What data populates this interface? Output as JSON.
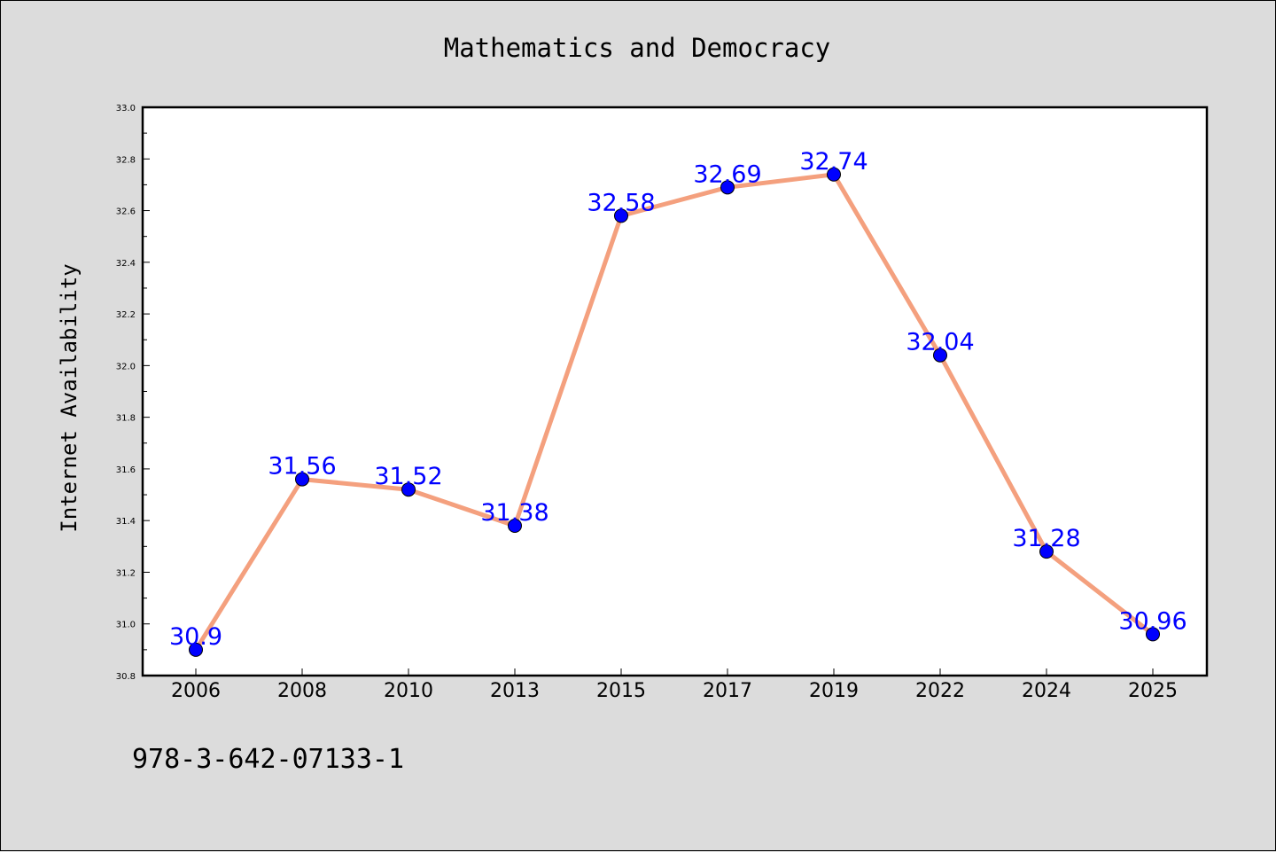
{
  "chart_data": {
    "type": "line",
    "title": "Mathematics and Democracy",
    "xlabel": "",
    "ylabel": "Internet Availability",
    "categories": [
      "2006",
      "2008",
      "2010",
      "2013",
      "2015",
      "2017",
      "2019",
      "2022",
      "2024",
      "2025"
    ],
    "values": [
      30.9,
      31.56,
      31.52,
      31.38,
      32.58,
      32.69,
      32.74,
      32.04,
      31.28,
      30.96
    ],
    "data_labels": [
      "30.9",
      "31.56",
      "31.52",
      "31.38",
      "32.58",
      "32.69",
      "32.74",
      "32.04",
      "31.28",
      "30.96"
    ],
    "ylim": [
      30.8,
      33.0
    ],
    "yticks": [
      "30.8",
      "31.0",
      "31.2",
      "31.4",
      "31.6",
      "31.8",
      "32.0",
      "32.2",
      "32.4",
      "32.6",
      "32.8",
      "33.0"
    ],
    "grid": false,
    "colors": {
      "line": "#f4a07e",
      "marker": "#0000ff",
      "label": "#0000ff",
      "background": "#dcdcdc",
      "plot_area": "#ffffff"
    }
  },
  "footer": {
    "code": "978-3-642-07133-1"
  }
}
